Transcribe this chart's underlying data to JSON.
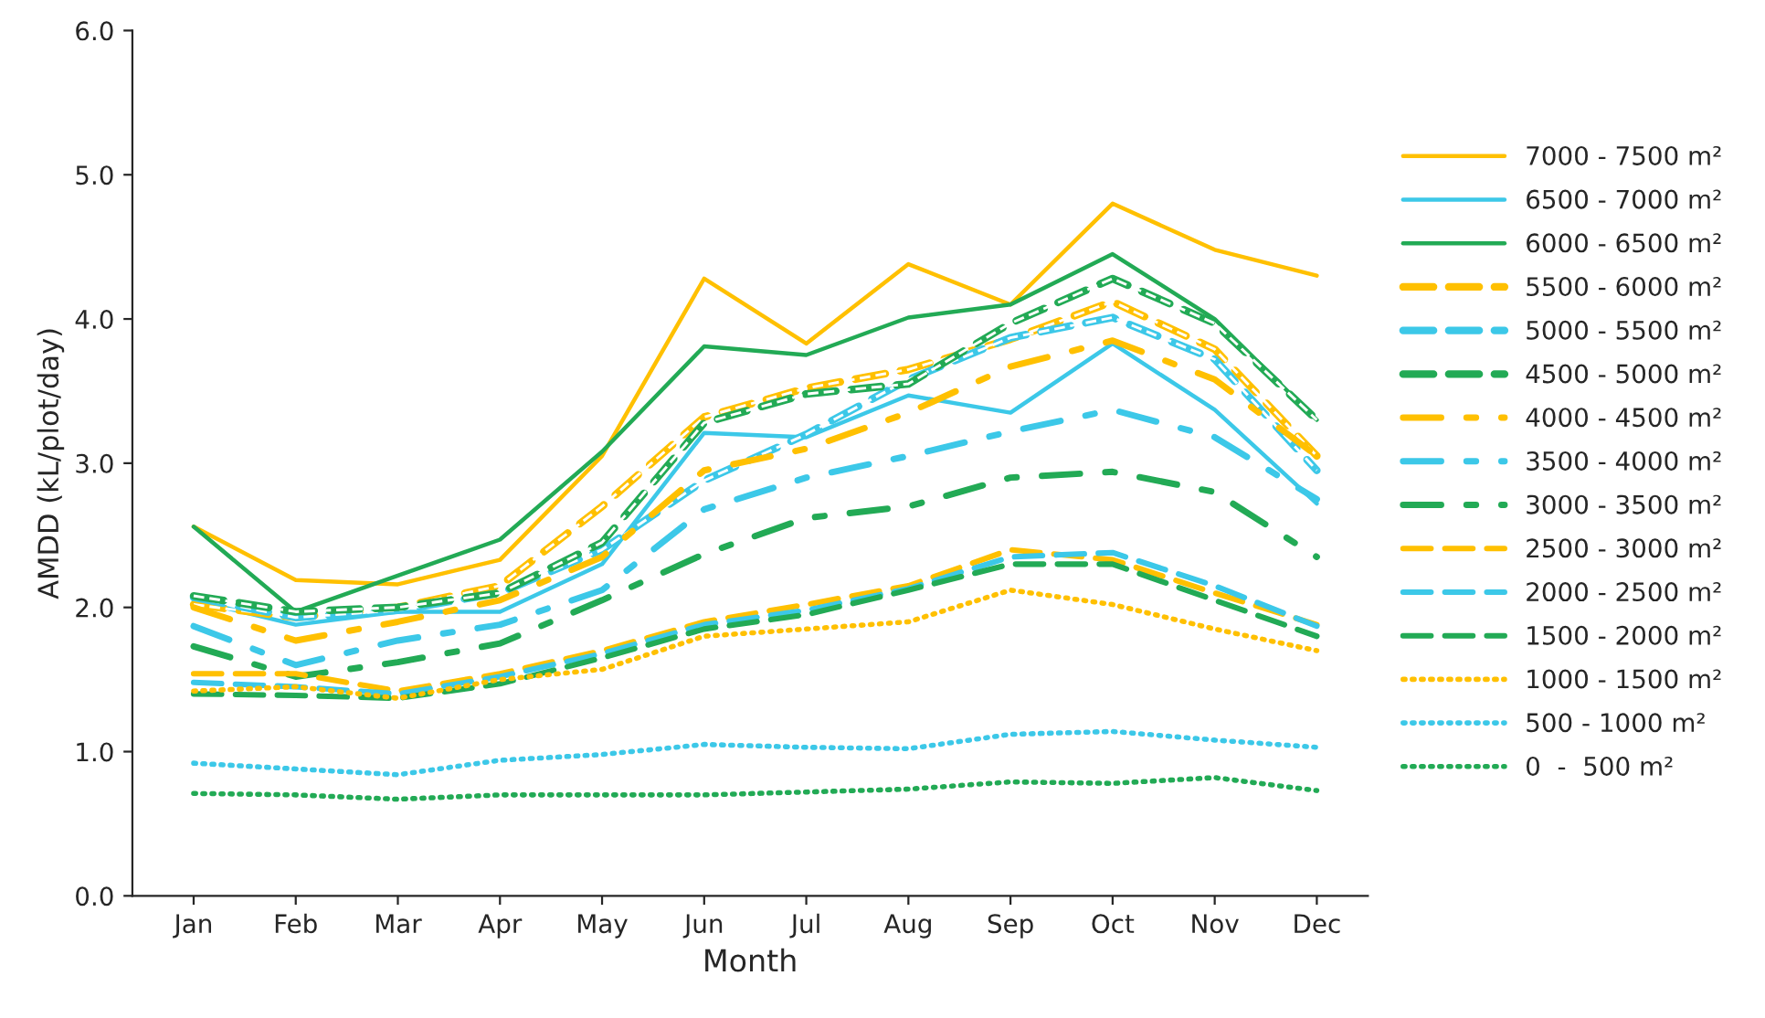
{
  "chart_data": {
    "type": "line",
    "xlabel": "Month",
    "ylabel": "AMDD (kL/plot/day)",
    "categories": [
      "Jan",
      "Feb",
      "Mar",
      "Apr",
      "May",
      "Jun",
      "Jul",
      "Aug",
      "Sep",
      "Oct",
      "Nov",
      "Dec"
    ],
    "ylim": [
      0,
      6
    ],
    "yticks": [
      {
        "value": 0,
        "label": "0.0"
      },
      {
        "value": 1,
        "label": "1.0"
      },
      {
        "value": 2,
        "label": "2.0"
      },
      {
        "value": 3,
        "label": "3.0"
      },
      {
        "value": 4,
        "label": "4.0"
      },
      {
        "value": 5,
        "label": "5.0"
      },
      {
        "value": 6,
        "label": "6.0"
      }
    ],
    "grid": false,
    "legend": "right",
    "marker": "none",
    "series": [
      {
        "name": "7000 - 7500 m²",
        "color": "#ffc000",
        "line_style": "solid",
        "values": [
          2.56,
          2.19,
          2.16,
          2.33,
          3.05,
          4.28,
          3.83,
          4.38,
          4.1,
          4.8,
          4.48,
          4.3
        ]
      },
      {
        "name": "6500 - 7000 m²",
        "color": "#3cc8e8",
        "line_style": "solid",
        "values": [
          2.05,
          1.88,
          1.97,
          1.97,
          2.3,
          3.21,
          3.18,
          3.47,
          3.35,
          3.83,
          3.37,
          2.72
        ]
      },
      {
        "name": "6000 - 6500 m²",
        "color": "#22aa55",
        "line_style": "solid",
        "values": [
          2.56,
          1.97,
          2.22,
          2.47,
          3.08,
          3.81,
          3.75,
          4.01,
          4.1,
          4.45,
          4.0,
          3.3
        ]
      },
      {
        "name": "5500 - 6000 m²",
        "color": "#ffc000",
        "line_style": "double",
        "values": [
          2.02,
          1.93,
          2.0,
          2.15,
          2.7,
          3.32,
          3.52,
          3.65,
          3.86,
          4.12,
          3.79,
          3.05
        ]
      },
      {
        "name": "5000 - 5500 m²",
        "color": "#3cc8e8",
        "line_style": "double",
        "values": [
          2.07,
          1.93,
          1.98,
          2.1,
          2.4,
          2.88,
          3.2,
          3.58,
          3.87,
          4.01,
          3.72,
          2.95
        ]
      },
      {
        "name": "4500 - 5000 m²",
        "color": "#22aa55",
        "line_style": "double",
        "values": [
          2.08,
          1.97,
          2.0,
          2.1,
          2.45,
          3.28,
          3.48,
          3.55,
          3.97,
          4.28,
          3.97,
          3.3
        ]
      },
      {
        "name": "4000 - 4500 m²",
        "color": "#ffc000",
        "line_style": "dashdot",
        "values": [
          2.0,
          1.77,
          1.9,
          2.05,
          2.35,
          2.95,
          3.1,
          3.35,
          3.67,
          3.85,
          3.58,
          3.05
        ]
      },
      {
        "name": "3500 - 4000 m²",
        "color": "#3cc8e8",
        "line_style": "dashdot",
        "values": [
          1.87,
          1.6,
          1.77,
          1.88,
          2.12,
          2.68,
          2.9,
          3.05,
          3.22,
          3.37,
          3.18,
          2.75
        ]
      },
      {
        "name": "3000 - 3500 m²",
        "color": "#22aa55",
        "line_style": "dashdot",
        "values": [
          1.73,
          1.52,
          1.62,
          1.75,
          2.05,
          2.37,
          2.62,
          2.7,
          2.9,
          2.94,
          2.8,
          2.35
        ]
      },
      {
        "name": "2500 - 3000 m²",
        "color": "#ffc000",
        "line_style": "dashed",
        "values": [
          1.54,
          1.54,
          1.42,
          1.54,
          1.7,
          1.9,
          2.02,
          2.15,
          2.4,
          2.33,
          2.1,
          1.88
        ]
      },
      {
        "name": "2000 - 2500 m²",
        "color": "#3cc8e8",
        "line_style": "dashed",
        "values": [
          1.48,
          1.45,
          1.4,
          1.52,
          1.68,
          1.88,
          1.98,
          2.13,
          2.35,
          2.38,
          2.15,
          1.87
        ]
      },
      {
        "name": "1500 - 2000 m²",
        "color": "#22aa55",
        "line_style": "dashed",
        "values": [
          1.4,
          1.39,
          1.37,
          1.47,
          1.65,
          1.85,
          1.95,
          2.12,
          2.3,
          2.3,
          2.05,
          1.8
        ]
      },
      {
        "name": "1000 - 1500 m²",
        "color": "#ffc000",
        "line_style": "dotted",
        "values": [
          1.42,
          1.45,
          1.37,
          1.5,
          1.57,
          1.8,
          1.85,
          1.9,
          2.12,
          2.02,
          1.85,
          1.7
        ]
      },
      {
        "name": "500 - 1000 m²",
        "color": "#3cc8e8",
        "line_style": "dotted",
        "values": [
          0.92,
          0.88,
          0.84,
          0.94,
          0.98,
          1.05,
          1.03,
          1.02,
          1.12,
          1.14,
          1.08,
          1.03
        ]
      },
      {
        "name": "0  -  500 m²",
        "color": "#22aa55",
        "line_style": "dotted",
        "values": [
          0.71,
          0.7,
          0.67,
          0.7,
          0.7,
          0.7,
          0.72,
          0.74,
          0.79,
          0.78,
          0.82,
          0.73
        ]
      }
    ]
  }
}
